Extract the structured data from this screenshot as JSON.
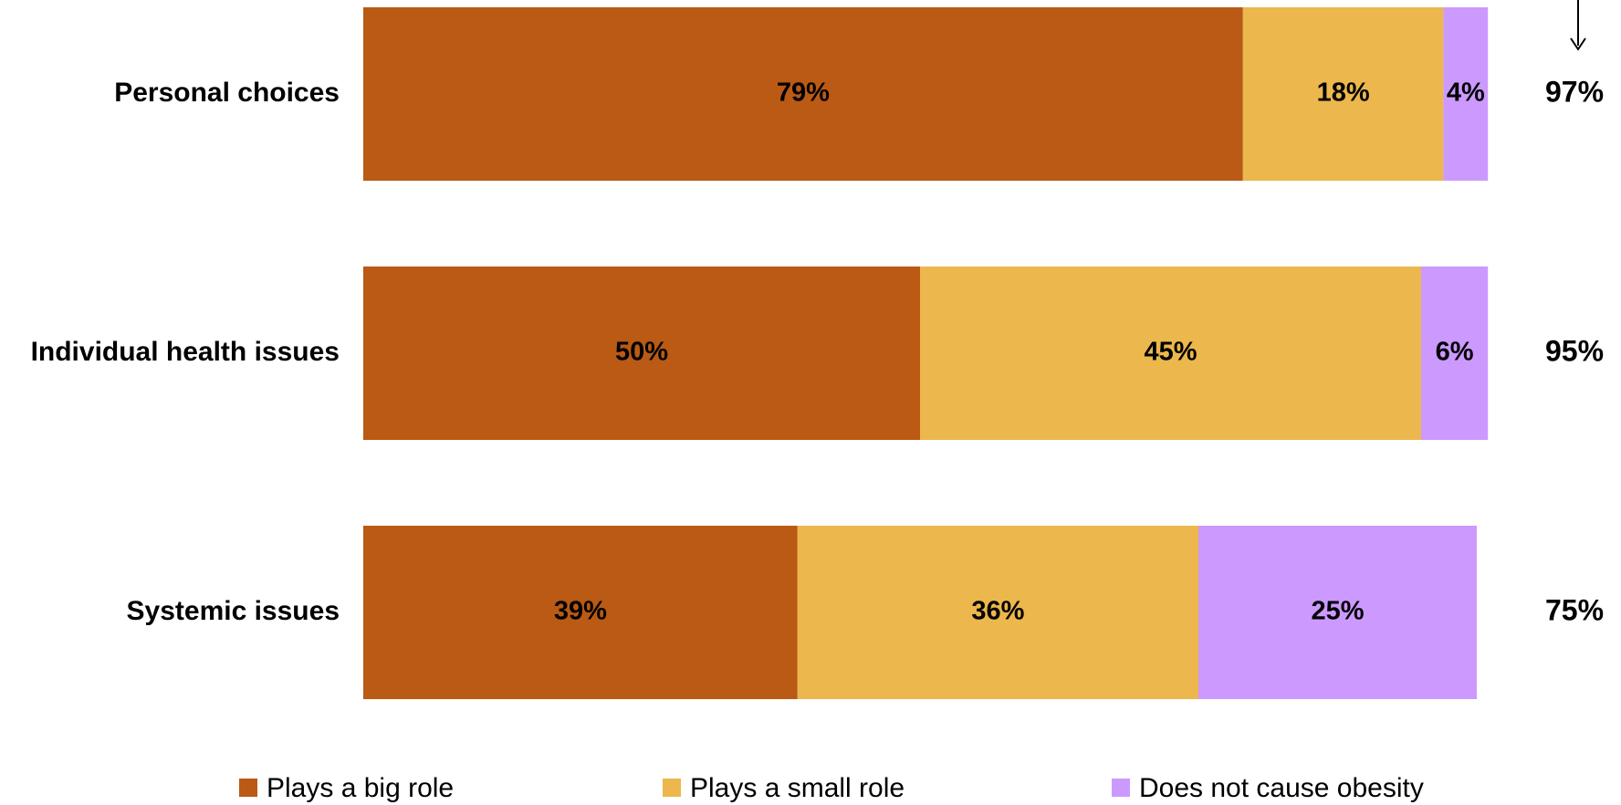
{
  "chart_data": {
    "type": "stacked-bar-horizontal",
    "categories": [
      "Personal choices",
      "Individual health issues",
      "Systemic issues"
    ],
    "series": [
      {
        "name": "Plays a big role",
        "color": "#BA5A14",
        "values": [
          79,
          50,
          39
        ],
        "value_labels": [
          "79%",
          "50%",
          "39%"
        ]
      },
      {
        "name": "Plays a small role",
        "color": "#ECB74C",
        "values": [
          18,
          45,
          36
        ],
        "value_labels": [
          "18%",
          "45%",
          "36%"
        ]
      },
      {
        "name": "Does not cause obesity",
        "color": "#CC99FF",
        "values": [
          4,
          6,
          25
        ],
        "value_labels": [
          "4%",
          "6%",
          "25%"
        ]
      }
    ],
    "totals": {
      "values": [
        97,
        95,
        75
      ],
      "value_labels": [
        "97%",
        "95%",
        "75%"
      ]
    },
    "legend": "bottom"
  }
}
